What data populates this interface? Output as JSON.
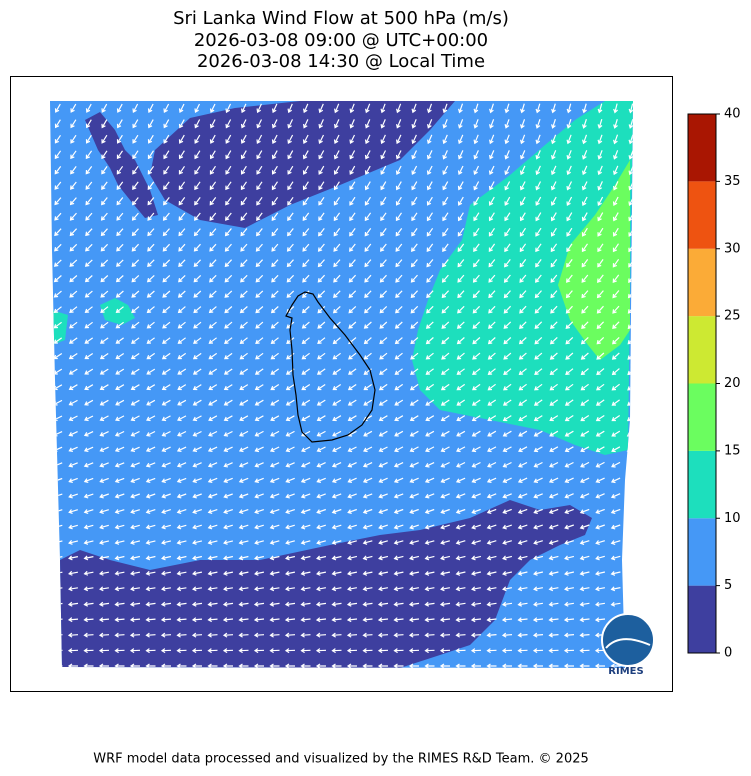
{
  "map": {
    "title": [
      "Sri Lanka Wind Flow at 500 hPa (m/s)",
      "2026-03-08 09:00 @ UTC+00:00",
      "2026-03-08 14:30 @ Local Time"
    ],
    "colorbar": {
      "ticks": [
        0,
        5,
        10,
        15,
        20,
        25,
        30,
        35,
        40
      ],
      "colors": [
        "#3e3f9f",
        "#4598f6",
        "#1ddfbd",
        "#6bfd5f",
        "#cde932",
        "#fbab37",
        "#ee5311",
        "#a91602"
      ]
    },
    "logo": "RIMES",
    "footer": "WRF model data processed and visualized by the RIMES R&D Team. © 2025"
  }
}
